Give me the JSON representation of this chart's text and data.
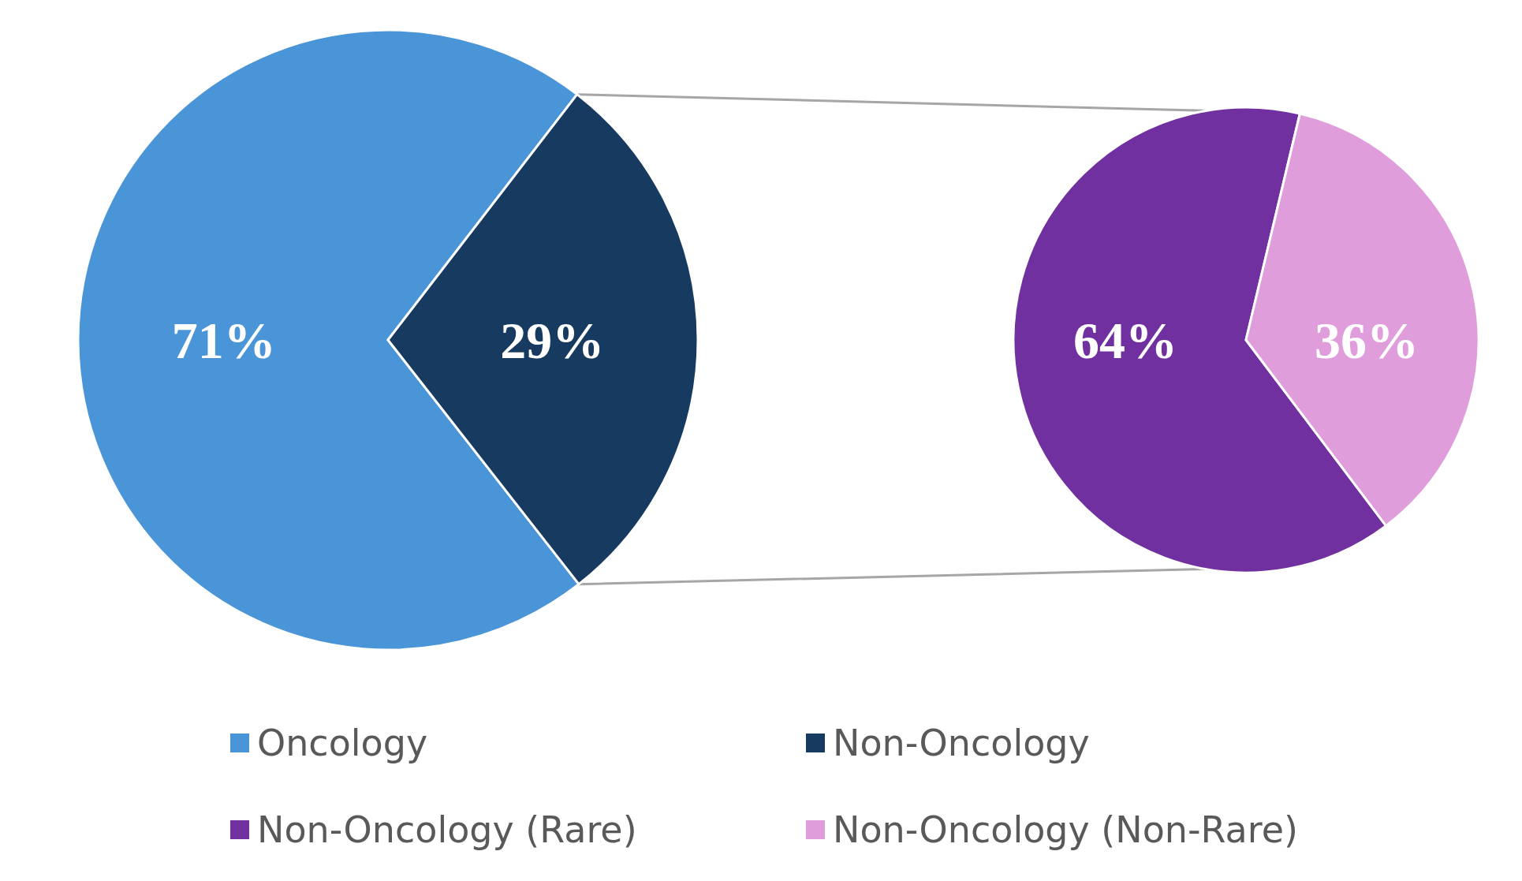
{
  "chart_data": [
    {
      "type": "pie",
      "categories": [
        "Oncology",
        "Non-Oncology"
      ],
      "values": [
        71,
        29
      ],
      "value_labels": [
        "71%",
        "29%"
      ],
      "colors": [
        "#4a94d8",
        "#173a60"
      ],
      "legend": "bottom"
    },
    {
      "type": "pie",
      "categories": [
        "Non-Oncology (Rare)",
        "Non-Oncology (Non-Rare)"
      ],
      "values": [
        64,
        36
      ],
      "value_labels": [
        "64%",
        "36%"
      ],
      "colors": [
        "#7030a0",
        "#e09ddc"
      ],
      "legend": "bottom"
    }
  ]
}
